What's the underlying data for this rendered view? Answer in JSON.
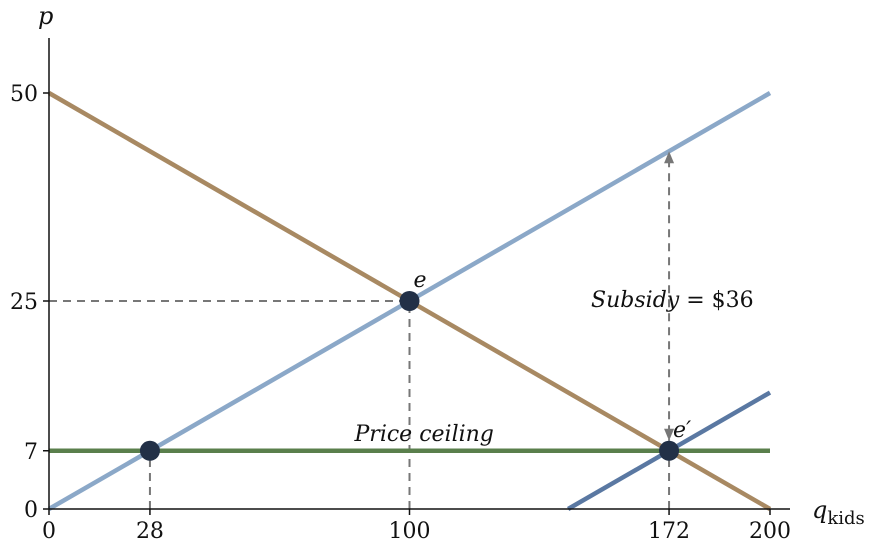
{
  "chart_data": {
    "type": "line",
    "xlabel": "q",
    "xlabel_sub": "kids",
    "ylabel": "p",
    "xlim": [
      0,
      200
    ],
    "ylim": [
      0,
      50
    ],
    "x_ticks": [
      {
        "value": 0,
        "label": "0"
      },
      {
        "value": 28,
        "label": "28"
      },
      {
        "value": 100,
        "label": "100"
      },
      {
        "value": 172,
        "label": "172"
      },
      {
        "value": 200,
        "label": "200"
      }
    ],
    "y_ticks": [
      {
        "value": 0,
        "label": "0"
      },
      {
        "value": 7,
        "label": "7"
      },
      {
        "value": 25,
        "label": "25"
      },
      {
        "value": 50,
        "label": "50"
      }
    ],
    "grid": false,
    "series": [
      {
        "points": [
          [
            0,
            50
          ],
          [
            200,
            0
          ]
        ],
        "color": "#a88962"
      },
      {
        "points": [
          [
            0,
            0
          ],
          [
            200,
            50
          ]
        ],
        "color": "#8ba8c8"
      },
      {
        "points": [
          [
            144,
            0
          ],
          [
            200,
            14
          ]
        ],
        "color": "#5a78a2"
      },
      {
        "points": [
          [
            0,
            7
          ],
          [
            200,
            7
          ]
        ],
        "color": "#5a7f4c"
      }
    ],
    "reference_lines": [
      {
        "from": [
          0,
          25
        ],
        "to": [
          100,
          25
        ]
      },
      {
        "from": [
          100,
          0
        ],
        "to": [
          100,
          25
        ]
      },
      {
        "from": [
          28,
          0
        ],
        "to": [
          28,
          7
        ]
      },
      {
        "from": [
          172,
          0
        ],
        "to": [
          172,
          7
        ]
      }
    ],
    "subsidy_arrow": {
      "x": 172,
      "from_y": 7,
      "to_y": 43
    },
    "points": [
      {
        "x": 28,
        "y": 7,
        "label": ""
      },
      {
        "x": 100,
        "y": 25,
        "label": "e"
      },
      {
        "x": 172,
        "y": 7,
        "label": "e′"
      }
    ],
    "annotations": [
      {
        "text": "Price ceiling",
        "x": 100,
        "y": 7
      },
      {
        "text_italic": "Subsidy",
        "text_rest": " = $36",
        "x": 172,
        "y": 25
      }
    ],
    "colors": {
      "point_fill": "#223047",
      "dashed": "#777777"
    }
  }
}
